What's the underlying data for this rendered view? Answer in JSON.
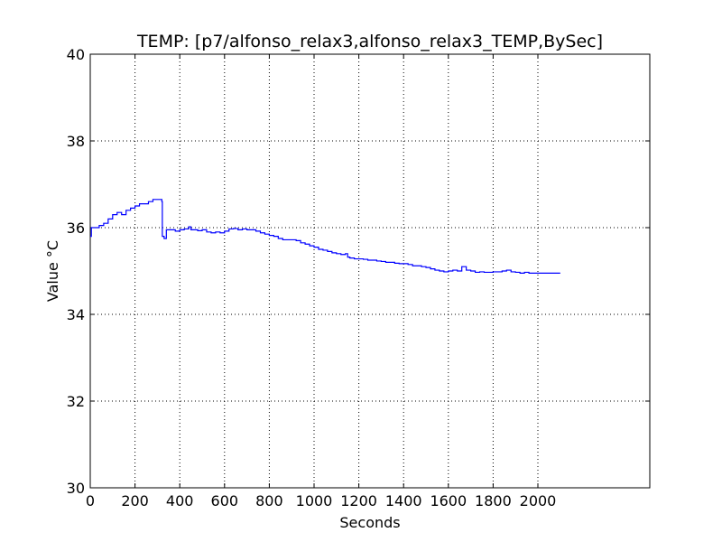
{
  "chart_data": {
    "type": "line",
    "title": "TEMP: [p7/alfonso_relax3,alfonso_relax3_TEMP,BySec]",
    "xlabel": "Seconds",
    "ylabel": "Value °C",
    "xlim": [
      0,
      2500
    ],
    "ylim": [
      30,
      40
    ],
    "xticks": [
      0,
      200,
      400,
      600,
      800,
      1000,
      1200,
      1400,
      1600,
      1800,
      2000
    ],
    "xtick_labels": [
      "0",
      "200",
      "400",
      "600",
      "800",
      "1000",
      "1200",
      "1400",
      "1600",
      "1800",
      "2000"
    ],
    "yticks": [
      30,
      32,
      34,
      36,
      38,
      40
    ],
    "ytick_labels": [
      "30",
      "32",
      "34",
      "36",
      "38",
      "40"
    ],
    "grid": true,
    "line_color": "#0000ff",
    "series": [
      {
        "name": "TEMP",
        "step": true,
        "points": [
          [
            0,
            35.8
          ],
          [
            5,
            36.0
          ],
          [
            40,
            36.05
          ],
          [
            60,
            36.1
          ],
          [
            80,
            36.2
          ],
          [
            100,
            36.3
          ],
          [
            120,
            36.35
          ],
          [
            140,
            36.3
          ],
          [
            160,
            36.4
          ],
          [
            180,
            36.45
          ],
          [
            200,
            36.5
          ],
          [
            220,
            36.55
          ],
          [
            240,
            36.55
          ],
          [
            260,
            36.6
          ],
          [
            280,
            36.65
          ],
          [
            300,
            36.65
          ],
          [
            320,
            36.6
          ],
          [
            322,
            35.8
          ],
          [
            330,
            35.75
          ],
          [
            340,
            35.95
          ],
          [
            360,
            35.95
          ],
          [
            380,
            35.92
          ],
          [
            400,
            35.95
          ],
          [
            420,
            35.97
          ],
          [
            440,
            36.02
          ],
          [
            450,
            35.95
          ],
          [
            480,
            35.93
          ],
          [
            500,
            35.95
          ],
          [
            520,
            35.9
          ],
          [
            540,
            35.88
          ],
          [
            560,
            35.9
          ],
          [
            580,
            35.88
          ],
          [
            600,
            35.92
          ],
          [
            620,
            35.97
          ],
          [
            640,
            35.98
          ],
          [
            660,
            35.95
          ],
          [
            680,
            35.97
          ],
          [
            700,
            35.95
          ],
          [
            720,
            35.95
          ],
          [
            740,
            35.92
          ],
          [
            760,
            35.88
          ],
          [
            780,
            35.85
          ],
          [
            800,
            35.82
          ],
          [
            820,
            35.8
          ],
          [
            840,
            35.75
          ],
          [
            860,
            35.72
          ],
          [
            880,
            35.72
          ],
          [
            900,
            35.72
          ],
          [
            920,
            35.7
          ],
          [
            940,
            35.65
          ],
          [
            960,
            35.62
          ],
          [
            980,
            35.58
          ],
          [
            1000,
            35.55
          ],
          [
            1020,
            35.5
          ],
          [
            1040,
            35.48
          ],
          [
            1060,
            35.45
          ],
          [
            1080,
            35.42
          ],
          [
            1100,
            35.4
          ],
          [
            1120,
            35.38
          ],
          [
            1140,
            35.4
          ],
          [
            1150,
            35.32
          ],
          [
            1160,
            35.3
          ],
          [
            1180,
            35.28
          ],
          [
            1200,
            35.28
          ],
          [
            1220,
            35.27
          ],
          [
            1240,
            35.25
          ],
          [
            1260,
            35.25
          ],
          [
            1280,
            35.23
          ],
          [
            1300,
            35.22
          ],
          [
            1320,
            35.2
          ],
          [
            1340,
            35.2
          ],
          [
            1360,
            35.18
          ],
          [
            1380,
            35.17
          ],
          [
            1400,
            35.17
          ],
          [
            1420,
            35.15
          ],
          [
            1440,
            35.12
          ],
          [
            1460,
            35.12
          ],
          [
            1480,
            35.1
          ],
          [
            1500,
            35.08
          ],
          [
            1520,
            35.05
          ],
          [
            1540,
            35.02
          ],
          [
            1560,
            35.0
          ],
          [
            1580,
            34.98
          ],
          [
            1600,
            35.0
          ],
          [
            1620,
            35.02
          ],
          [
            1640,
            35.0
          ],
          [
            1660,
            35.1
          ],
          [
            1680,
            35.02
          ],
          [
            1700,
            35.0
          ],
          [
            1720,
            34.97
          ],
          [
            1740,
            34.98
          ],
          [
            1760,
            34.97
          ],
          [
            1780,
            34.97
          ],
          [
            1800,
            34.98
          ],
          [
            1820,
            34.98
          ],
          [
            1840,
            35.0
          ],
          [
            1860,
            35.02
          ],
          [
            1880,
            34.98
          ],
          [
            1900,
            34.97
          ],
          [
            1920,
            34.95
          ],
          [
            1940,
            34.97
          ],
          [
            1960,
            34.95
          ],
          [
            1980,
            34.95
          ],
          [
            2000,
            34.95
          ],
          [
            2050,
            34.95
          ],
          [
            2100,
            34.95
          ]
        ]
      }
    ]
  }
}
